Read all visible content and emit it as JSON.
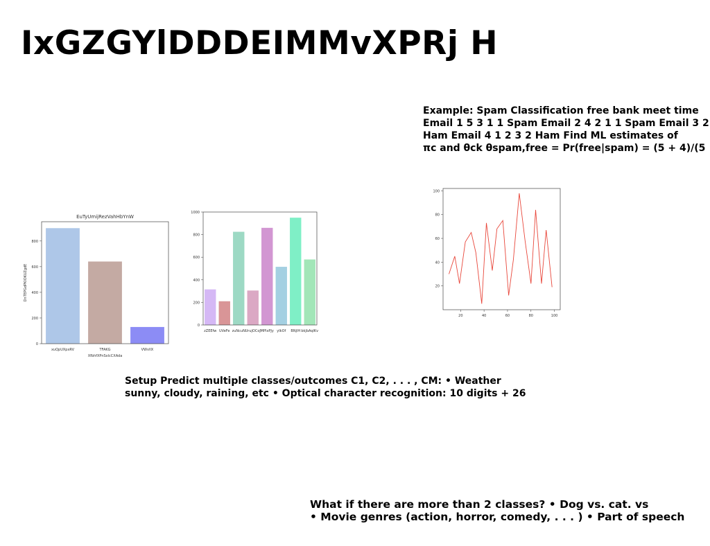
{
  "title": "IxGZGYlDDDEIMMvXPRj H",
  "example_lines": [
    "Example: Spam Classification free bank meet time",
    "Email 1 5 3 1 1 Spam Email 2 4 2 1 1 Spam Email 3 2 1 2",
    "Ham Email 4 1 2 3 2 Ham Find ML estimates of",
    "πc and θck θspam,free = Pr(free|spam) = (5 + 4)/(5"
  ],
  "setup_lines": [
    "Setup Predict multiple classes/outcomes C1, C2, . . . , CM: • Weather",
    "sunny, cloudy, raining, etc • Optical character recognition: 10 digits + 26"
  ],
  "more_classes_lines": [
    "What if there are more than 2 classes? • Dog vs. cat. vs",
    "• Movie genres (action, horror, comedy, . . . ) • Part of speech"
  ],
  "chart_data": [
    {
      "type": "bar",
      "title": "EuTyUmijRezVahHbYnW",
      "xlabel": "XfbhfXPnSxlcCXAda",
      "ylabel": "DnTEPGdPKIOKUZgdE",
      "categories": [
        "xuQpUXpxRV",
        "TFAKG",
        "VWvIIX"
      ],
      "values": [
        900,
        640,
        130
      ],
      "ylim": [
        0,
        950
      ],
      "yticks": [
        0,
        200,
        400,
        600,
        800
      ],
      "colors": [
        "#aec7e8",
        "#c4aaa3",
        "#8c8cf5"
      ]
    },
    {
      "type": "bar",
      "title": "",
      "categories": [
        "zZEEfw",
        "UVeFe",
        "zuNcuN",
        "UrujOCoJ",
        "MPIxPJy",
        "yIkOf",
        "BNjlH",
        "bkjbAqlKv"
      ],
      "values": [
        315,
        210,
        825,
        305,
        860,
        515,
        950,
        580
      ],
      "ylim": [
        0,
        1000
      ],
      "yticks": [
        0,
        200,
        400,
        600,
        800,
        1000
      ],
      "colors": [
        "#d5b8f5",
        "#d99597",
        "#9dd9c4",
        "#dba8c4",
        "#d296d2",
        "#a4d0e2",
        "#7fefc6",
        "#a2e6b8"
      ]
    },
    {
      "type": "line",
      "title": "",
      "x": [
        10,
        15,
        19,
        24,
        29,
        33,
        38,
        42,
        47,
        51,
        56,
        61,
        65,
        70,
        75,
        80,
        84,
        89,
        93,
        98
      ],
      "y": [
        30,
        45,
        22,
        57,
        65,
        48,
        5,
        73,
        33,
        68,
        75,
        12,
        42,
        98,
        58,
        22,
        84,
        22,
        67,
        19
      ],
      "xlim": [
        5,
        105
      ],
      "ylim": [
        0,
        102
      ],
      "xticks": [
        20,
        40,
        60,
        80,
        100
      ],
      "yticks": [
        20,
        40,
        60,
        80,
        100
      ],
      "color": "#e8463a"
    }
  ]
}
